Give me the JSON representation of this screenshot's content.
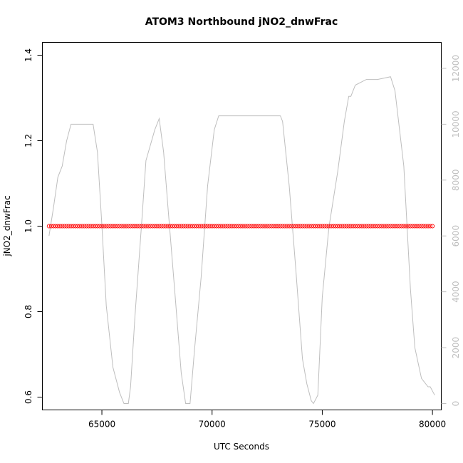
{
  "chart_data": {
    "type": "scatter",
    "title": "ATOM3 Northbound jNO2_dnwFrac",
    "xlabel": "UTC Seconds",
    "ylabel": "jNO2_dnwFrac",
    "xlim": [
      62300,
      80400
    ],
    "ylim": [
      0.57,
      1.43
    ],
    "x_ticks": [
      65000,
      70000,
      75000,
      80000
    ],
    "x_tick_labels": [
      "65000",
      "70000",
      "75000",
      "80000"
    ],
    "y_ticks": [
      0.6,
      0.8,
      1.0,
      1.2,
      1.4
    ],
    "y_tick_labels": [
      "0.6",
      "0.8",
      "1.0",
      "1.2",
      "1.4"
    ],
    "y2_lim": [
      -230,
      12930
    ],
    "y2_ticks": [
      0,
      2000,
      4000,
      6000,
      8000,
      10000,
      12000
    ],
    "y2_tick_labels": [
      "0",
      "2000",
      "4000",
      "6000",
      "8000",
      "10000",
      "12000"
    ],
    "grid": false,
    "colors": {
      "points": "#ff0000",
      "secondary_line": "#bebebe",
      "axes": "#000000"
    },
    "series": [
      {
        "kind": "points",
        "marker": "open-circle",
        "x_start": 62600,
        "x_end": 80000,
        "x_step": 100,
        "y_constant": 1.0
      },
      {
        "kind": "line",
        "axis": "right",
        "x": [
          62600,
          62800,
          63000,
          63200,
          63400,
          63600,
          64000,
          64600,
          64800,
          65000,
          65200,
          65500,
          65800,
          66000,
          66200,
          66300,
          66500,
          66600,
          66800,
          67000,
          67400,
          67600,
          67800,
          68000,
          68300,
          68600,
          68800,
          69000,
          69200,
          69500,
          69800,
          70100,
          70300,
          70500,
          71000,
          72000,
          72800,
          73000,
          73100,
          73200,
          73500,
          73800,
          74100,
          74300,
          74500,
          74600,
          74800,
          75000,
          75300,
          75700,
          76000,
          76200,
          76300,
          76500,
          77000,
          77500,
          78100,
          78300,
          78700,
          79000,
          79200,
          79500,
          79800,
          79900,
          80100
        ],
        "y": [
          6000,
          7000,
          8100,
          8500,
          9400,
          10000,
          10000,
          10000,
          9000,
          6400,
          3500,
          1300,
          400,
          0,
          0,
          600,
          3100,
          4200,
          6400,
          8700,
          9800,
          10200,
          9000,
          7000,
          4100,
          1100,
          0,
          0,
          1900,
          4500,
          7800,
          9800,
          10300,
          10300,
          10300,
          10300,
          10300,
          10300,
          10300,
          10100,
          7800,
          4800,
          1600,
          700,
          100,
          0,
          300,
          3800,
          6300,
          8300,
          10100,
          11000,
          11000,
          11400,
          11600,
          11600,
          11700,
          11200,
          8500,
          4100,
          2000,
          900,
          600,
          600,
          300
        ]
      }
    ]
  }
}
